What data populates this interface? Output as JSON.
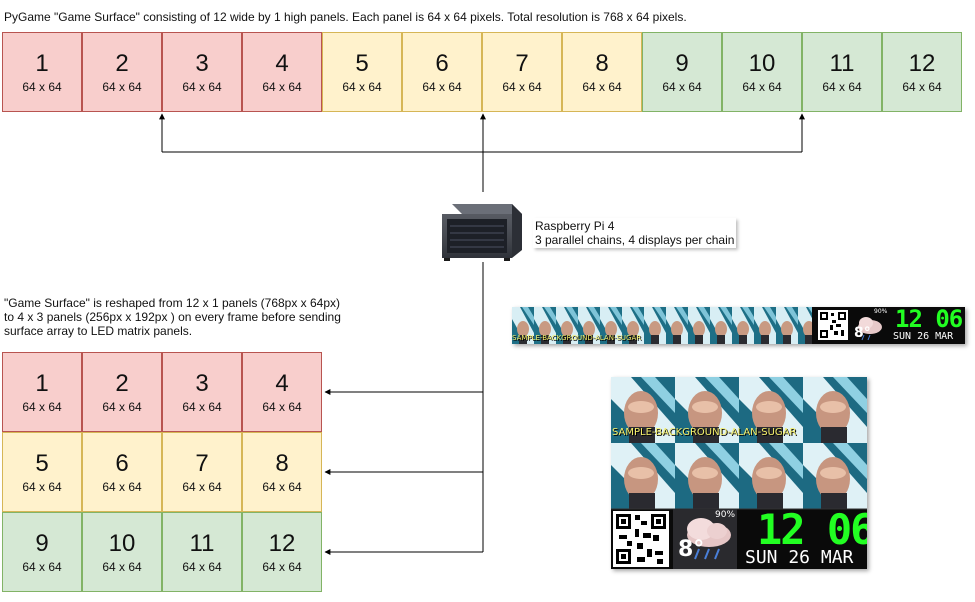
{
  "top_caption": "PyGame \"Game Surface\" consisting of 12 wide by 1 high panels. Each panel is 64 x 64 pixels. Total resolution is 768 x 64 pixels.",
  "reshape_caption": "\"Game Surface\" is reshaped from 12 x 1 panels (768px x 64px)\nto 4 x 3 panels (256px x 192px ) on every frame before sending\nsurface array to LED matrix panels.",
  "pi": {
    "title": "Raspberry Pi 4",
    "subtitle": "3 parallel chains, 4 displays per chain",
    "icon": "server-rack-icon"
  },
  "panels": [
    {
      "num": "1",
      "size": "64 x 64",
      "chain": "red"
    },
    {
      "num": "2",
      "size": "64 x 64",
      "chain": "red"
    },
    {
      "num": "3",
      "size": "64 x 64",
      "chain": "red"
    },
    {
      "num": "4",
      "size": "64 x 64",
      "chain": "red"
    },
    {
      "num": "5",
      "size": "64 x 64",
      "chain": "yellow"
    },
    {
      "num": "6",
      "size": "64 x 64",
      "chain": "yellow"
    },
    {
      "num": "7",
      "size": "64 x 64",
      "chain": "yellow"
    },
    {
      "num": "8",
      "size": "64 x 64",
      "chain": "yellow"
    },
    {
      "num": "9",
      "size": "64 x 64",
      "chain": "green"
    },
    {
      "num": "10",
      "size": "64 x 64",
      "chain": "green"
    },
    {
      "num": "11",
      "size": "64 x 64",
      "chain": "green"
    },
    {
      "num": "12",
      "size": "64 x 64",
      "chain": "green"
    }
  ],
  "colors": {
    "red_fill": "#f8cecc",
    "red_stroke": "#b85450",
    "yellow_fill": "#fff2cc",
    "yellow_stroke": "#d6b656",
    "green_fill": "#d5e8d4",
    "green_stroke": "#82b366",
    "connector": "#000000"
  },
  "display": {
    "background_text": "SAMPLE-BACKGROUND-ALAN-SUGAR",
    "clock_hours": "12",
    "clock_minutes": "06",
    "date": "SUN 26 MAR",
    "temperature": "8°",
    "humidity": "90%",
    "icons": [
      "qr-code-icon",
      "rain-cloud-icon"
    ]
  }
}
